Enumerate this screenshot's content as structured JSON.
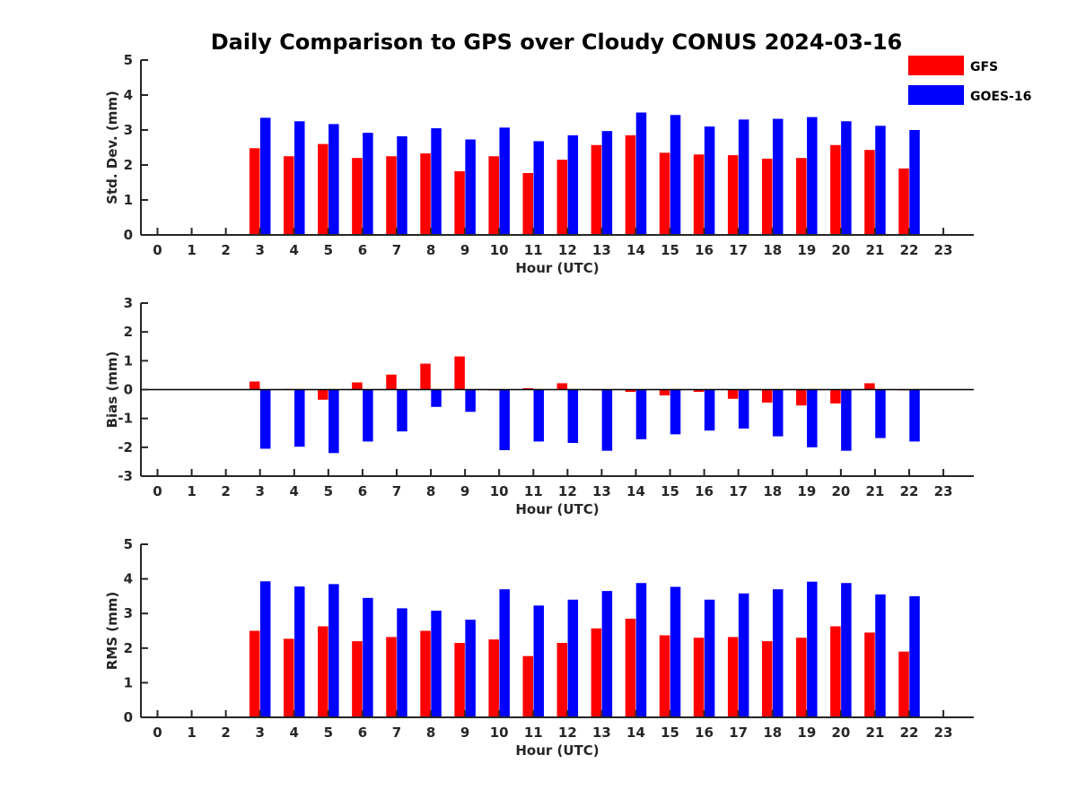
{
  "colors": {
    "GFS": "#ff0000",
    "GOES-16": "#0000ff",
    "axis": "#262626"
  },
  "chart_data": [
    {
      "type": "bar",
      "title": "Daily Comparison to GPS over Cloudy CONUS 2024-03-16",
      "xlabel": "Hour (UTC)",
      "ylabel": "Std. Dev. (mm)",
      "ylim": [
        0,
        5
      ],
      "yticks": [
        0,
        1,
        2,
        3,
        4,
        5
      ],
      "categories": [
        "0",
        "1",
        "2",
        "3",
        "4",
        "5",
        "6",
        "7",
        "8",
        "9",
        "10",
        "11",
        "12",
        "13",
        "14",
        "15",
        "16",
        "17",
        "18",
        "19",
        "20",
        "21",
        "22",
        "23"
      ],
      "legend": "top-right",
      "series": [
        {
          "name": "GFS",
          "values": [
            null,
            null,
            null,
            2.48,
            2.25,
            2.6,
            2.2,
            2.25,
            2.33,
            1.82,
            2.25,
            1.77,
            2.15,
            2.57,
            2.85,
            2.35,
            2.3,
            2.28,
            2.18,
            2.2,
            2.57,
            2.43,
            1.9,
            null
          ]
        },
        {
          "name": "GOES-16",
          "values": [
            null,
            null,
            null,
            3.35,
            3.25,
            3.17,
            2.92,
            2.82,
            3.05,
            2.73,
            3.07,
            2.68,
            2.85,
            2.97,
            3.5,
            3.43,
            3.1,
            3.3,
            3.32,
            3.37,
            3.25,
            3.12,
            3.0,
            null
          ]
        }
      ]
    },
    {
      "type": "bar",
      "xlabel": "Hour (UTC)",
      "ylabel": "Bias (mm)",
      "ylim": [
        -3,
        3
      ],
      "yticks": [
        -3,
        -2,
        -1,
        0,
        1,
        2,
        3
      ],
      "categories": [
        "0",
        "1",
        "2",
        "3",
        "4",
        "5",
        "6",
        "7",
        "8",
        "9",
        "10",
        "11",
        "12",
        "13",
        "14",
        "15",
        "16",
        "17",
        "18",
        "19",
        "20",
        "21",
        "22",
        "23"
      ],
      "series": [
        {
          "name": "GFS",
          "values": [
            null,
            null,
            null,
            0.28,
            0.02,
            -0.35,
            0.25,
            0.52,
            0.9,
            1.15,
            0.0,
            0.05,
            0.22,
            0.0,
            -0.08,
            -0.2,
            -0.08,
            -0.32,
            -0.45,
            -0.55,
            -0.48,
            0.22,
            0.0,
            null
          ]
        },
        {
          "name": "GOES-16",
          "values": [
            null,
            null,
            null,
            -2.05,
            -1.98,
            -2.2,
            -1.8,
            -1.45,
            -0.6,
            -0.77,
            -2.1,
            -1.8,
            -1.85,
            -2.12,
            -1.72,
            -1.55,
            -1.42,
            -1.35,
            -1.62,
            -2.0,
            -2.12,
            -1.68,
            -1.8,
            null
          ]
        }
      ]
    },
    {
      "type": "bar",
      "xlabel": "Hour (UTC)",
      "ylabel": "RMS (mm)",
      "ylim": [
        0,
        5
      ],
      "yticks": [
        0,
        1,
        2,
        3,
        4,
        5
      ],
      "categories": [
        "0",
        "1",
        "2",
        "3",
        "4",
        "5",
        "6",
        "7",
        "8",
        "9",
        "10",
        "11",
        "12",
        "13",
        "14",
        "15",
        "16",
        "17",
        "18",
        "19",
        "20",
        "21",
        "22",
        "23"
      ],
      "series": [
        {
          "name": "GFS",
          "values": [
            null,
            null,
            null,
            2.5,
            2.27,
            2.63,
            2.2,
            2.32,
            2.5,
            2.15,
            2.25,
            1.77,
            2.15,
            2.57,
            2.85,
            2.37,
            2.3,
            2.32,
            2.2,
            2.3,
            2.63,
            2.45,
            1.9,
            null
          ]
        },
        {
          "name": "GOES-16",
          "values": [
            null,
            null,
            null,
            3.93,
            3.78,
            3.85,
            3.45,
            3.15,
            3.08,
            2.82,
            3.7,
            3.23,
            3.4,
            3.65,
            3.88,
            3.77,
            3.4,
            3.58,
            3.7,
            3.92,
            3.88,
            3.55,
            3.5,
            null
          ]
        }
      ]
    }
  ]
}
